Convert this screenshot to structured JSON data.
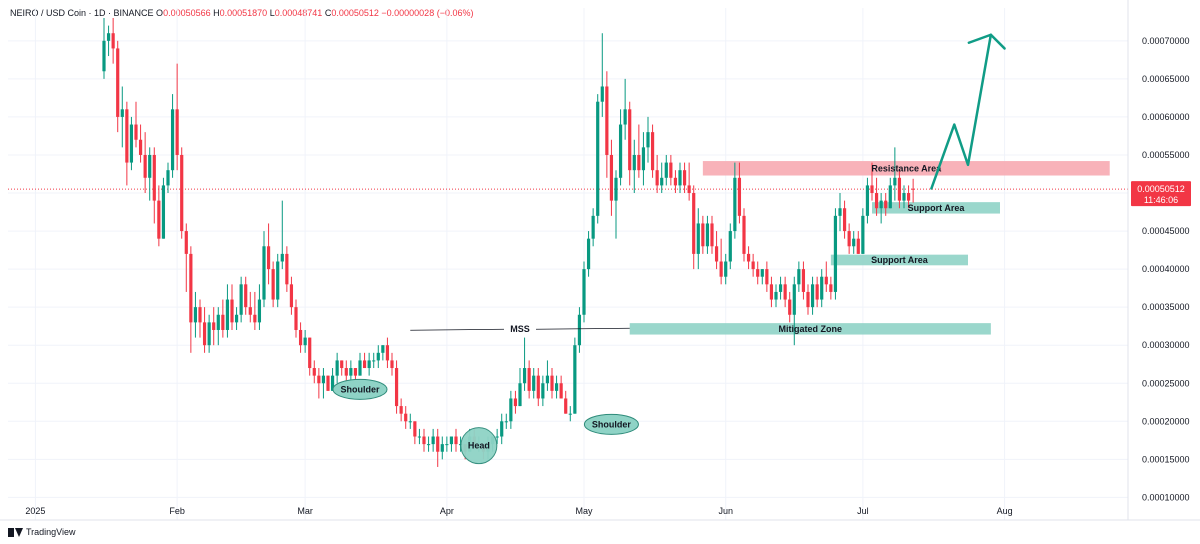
{
  "header": {
    "symbol": "NEIRO / USD Coin · 1D · BINANCE",
    "o_label": "O",
    "o_value": "0.00050566",
    "h_label": "H",
    "h_value": "0.00051870",
    "l_label": "L",
    "l_value": "0.00048741",
    "c_label": "C",
    "c_value": "0.00050512",
    "change": "−0.00000028 (−0.06%)"
  },
  "branding": {
    "name": "TradingView",
    "icon": "tradingview-logo-icon"
  },
  "colors": {
    "up": "#089981",
    "down": "#f23645",
    "zone": "#8fd3c6",
    "resistance": "#f7aab1",
    "arrow": "#109c86",
    "current_price_label": "#f23645"
  },
  "chart_data": {
    "type": "candlestick",
    "y_scale": "linear",
    "ylim": [
      9e-05,
      0.00073
    ],
    "y_ticks": [
      "0.00070000",
      "0.00065000",
      "0.00060000",
      "0.00055000",
      "0.00050000",
      "0.00045000",
      "0.00040000",
      "0.00035000",
      "0.00030000",
      "0.00025000",
      "0.00020000",
      "0.00015000",
      "0.00010000"
    ],
    "x_ticks": [
      "2025",
      "Feb",
      "Mar",
      "Apr",
      "May",
      "Jun",
      "Jul",
      "Aug"
    ],
    "x_tick_dates": [
      "2025-01-01",
      "2025-02-01",
      "2025-03-01",
      "2025-04-01",
      "2025-05-01",
      "2025-06-01",
      "2025-07-01",
      "2025-08-01"
    ],
    "xlim": [
      "2024-12-26",
      "2025-08-28"
    ],
    "current_price": {
      "value": 0.00050512,
      "label": "0.00050512",
      "countdown": "11:46:06"
    },
    "first_date": "2025-01-16",
    "candles": [
      [
        0.00066,
        0.00073,
        0.00065,
        0.0007
      ],
      [
        0.0007,
        0.00072,
        0.00068,
        0.00071
      ],
      [
        0.00071,
        0.00073,
        0.00067,
        0.00069
      ],
      [
        0.00069,
        0.0007,
        0.00058,
        0.0006
      ],
      [
        0.0006,
        0.00064,
        0.00056,
        0.00061
      ],
      [
        0.00061,
        0.00062,
        0.00051,
        0.00054
      ],
      [
        0.00054,
        0.0006,
        0.00053,
        0.00059
      ],
      [
        0.00059,
        0.00062,
        0.00056,
        0.00057
      ],
      [
        0.00057,
        0.00059,
        0.00054,
        0.00055
      ],
      [
        0.00055,
        0.00058,
        0.0005,
        0.00052
      ],
      [
        0.00052,
        0.00056,
        0.00049,
        0.00055
      ],
      [
        0.00055,
        0.00056,
        0.00046,
        0.00049
      ],
      [
        0.00049,
        0.00051,
        0.00043,
        0.00044
      ],
      [
        0.00044,
        0.00052,
        0.00044,
        0.00051
      ],
      [
        0.00051,
        0.00054,
        0.0005,
        0.00053
      ],
      [
        0.00053,
        0.00063,
        0.00052,
        0.00061
      ],
      [
        0.00061,
        0.00067,
        0.00053,
        0.00055
      ],
      [
        0.00055,
        0.00056,
        0.00044,
        0.00045
      ],
      [
        0.00045,
        0.00046,
        0.00037,
        0.00042
      ],
      [
        0.00042,
        0.00043,
        0.00029,
        0.00033
      ],
      [
        0.00033,
        0.00037,
        0.00031,
        0.00035
      ],
      [
        0.00035,
        0.00036,
        0.00031,
        0.00033
      ],
      [
        0.00033,
        0.00035,
        0.00029,
        0.0003
      ],
      [
        0.0003,
        0.00034,
        0.00029,
        0.00033
      ],
      [
        0.00033,
        0.00035,
        0.0003,
        0.00032
      ],
      [
        0.00032,
        0.00035,
        0.0003,
        0.00034
      ],
      [
        0.00034,
        0.00036,
        0.00031,
        0.00032
      ],
      [
        0.00032,
        0.00038,
        0.00031,
        0.00036
      ],
      [
        0.00036,
        0.00038,
        0.00032,
        0.00033
      ],
      [
        0.00033,
        0.00035,
        0.00032,
        0.00034
      ],
      [
        0.00034,
        0.00039,
        0.00033,
        0.00038
      ],
      [
        0.00038,
        0.00039,
        0.00034,
        0.00035
      ],
      [
        0.00035,
        0.00037,
        0.00033,
        0.00034
      ],
      [
        0.00034,
        0.00037,
        0.00032,
        0.00033
      ],
      [
        0.00033,
        0.00038,
        0.00032,
        0.00036
      ],
      [
        0.00036,
        0.00045,
        0.00035,
        0.00043
      ],
      [
        0.00043,
        0.00046,
        0.00038,
        0.0004
      ],
      [
        0.0004,
        0.00041,
        0.00035,
        0.00036
      ],
      [
        0.00036,
        0.00042,
        0.00035,
        0.00041
      ],
      [
        0.00041,
        0.00049,
        0.0004,
        0.00042
      ],
      [
        0.00042,
        0.00043,
        0.00037,
        0.00038
      ],
      [
        0.00038,
        0.00039,
        0.00034,
        0.00035
      ],
      [
        0.00035,
        0.00036,
        0.00031,
        0.00032
      ],
      [
        0.00032,
        0.00033,
        0.00029,
        0.0003
      ],
      [
        0.0003,
        0.00032,
        0.00029,
        0.00031
      ],
      [
        0.00031,
        0.00031,
        0.00026,
        0.00027
      ],
      [
        0.00027,
        0.00028,
        0.00025,
        0.00026
      ],
      [
        0.00026,
        0.00027,
        0.00023,
        0.00025
      ],
      [
        0.00025,
        0.00027,
        0.00023,
        0.00026
      ],
      [
        0.00026,
        0.00026,
        0.00024,
        0.00024
      ],
      [
        0.00024,
        0.00027,
        0.00024,
        0.00026
      ],
      [
        0.00026,
        0.00029,
        0.00025,
        0.00028
      ],
      [
        0.00028,
        0.00028,
        0.00026,
        0.00027
      ],
      [
        0.00027,
        0.00028,
        0.00025,
        0.00026
      ],
      [
        0.00026,
        0.00028,
        0.00025,
        0.00027
      ],
      [
        0.00027,
        0.00027,
        0.00025,
        0.00026
      ],
      [
        0.00026,
        0.00029,
        0.00026,
        0.00028
      ],
      [
        0.00028,
        0.00029,
        0.00027,
        0.00027
      ],
      [
        0.00027,
        0.00029,
        0.00026,
        0.00028
      ],
      [
        0.00028,
        0.00029,
        0.00027,
        0.00028
      ],
      [
        0.00028,
        0.0003,
        0.00027,
        0.00029
      ],
      [
        0.00029,
        0.0003,
        0.00028,
        0.0003
      ],
      [
        0.0003,
        0.00031,
        0.00027,
        0.00028
      ],
      [
        0.00028,
        0.00029,
        0.00026,
        0.00027
      ],
      [
        0.00027,
        0.00028,
        0.00021,
        0.00022
      ],
      [
        0.00022,
        0.00023,
        0.0002,
        0.00021
      ],
      [
        0.00021,
        0.00022,
        0.00019,
        0.0002
      ],
      [
        0.0002,
        0.00021,
        0.00019,
        0.0002
      ],
      [
        0.0002,
        0.0002,
        0.00017,
        0.00018
      ],
      [
        0.00018,
        0.00019,
        0.00017,
        0.00018
      ],
      [
        0.00018,
        0.00019,
        0.00016,
        0.00017
      ],
      [
        0.00017,
        0.00018,
        0.00016,
        0.00017
      ],
      [
        0.00017,
        0.00019,
        0.00016,
        0.00018
      ],
      [
        0.00018,
        0.00019,
        0.00014,
        0.00016
      ],
      [
        0.00016,
        0.00018,
        0.00015,
        0.00017
      ],
      [
        0.00017,
        0.00018,
        0.00016,
        0.00017
      ],
      [
        0.00017,
        0.00018,
        0.00016,
        0.00018
      ],
      [
        0.00018,
        0.00019,
        0.00016,
        0.00017
      ],
      [
        0.00017,
        0.00018,
        0.00016,
        0.00017
      ],
      [
        0.00017,
        0.00017,
        0.00015,
        0.00016
      ],
      [
        0.00016,
        0.00019,
        0.00016,
        0.00018
      ],
      [
        0.00018,
        0.00019,
        0.00017,
        0.00017
      ],
      [
        0.00017,
        0.00018,
        0.00016,
        0.00017
      ],
      [
        0.00017,
        0.00017,
        0.00015,
        0.00016
      ],
      [
        0.00016,
        0.00018,
        0.00015,
        0.00017
      ],
      [
        0.00017,
        0.00018,
        0.00016,
        0.00018
      ],
      [
        0.00018,
        0.00019,
        0.00017,
        0.00018
      ],
      [
        0.00018,
        0.00021,
        0.00017,
        0.0002
      ],
      [
        0.0002,
        0.00021,
        0.00019,
        0.0002
      ],
      [
        0.0002,
        0.00024,
        0.00019,
        0.00023
      ],
      [
        0.00023,
        0.00024,
        0.00021,
        0.00022
      ],
      [
        0.00022,
        0.00027,
        0.00022,
        0.00025
      ],
      [
        0.00025,
        0.00031,
        0.00024,
        0.00027
      ],
      [
        0.00027,
        0.00028,
        0.00023,
        0.00024
      ],
      [
        0.00024,
        0.00027,
        0.00023,
        0.00026
      ],
      [
        0.00026,
        0.00027,
        0.00022,
        0.00023
      ],
      [
        0.00023,
        0.00026,
        0.00022,
        0.00025
      ],
      [
        0.00025,
        0.00028,
        0.00024,
        0.00026
      ],
      [
        0.00026,
        0.00027,
        0.00023,
        0.00024
      ],
      [
        0.00024,
        0.00026,
        0.00023,
        0.00025
      ],
      [
        0.00025,
        0.00026,
        0.00023,
        0.00023
      ],
      [
        0.00023,
        0.00024,
        0.00021,
        0.00021
      ],
      [
        0.00021,
        0.00022,
        0.0002,
        0.00021
      ],
      [
        0.00021,
        0.00031,
        0.00021,
        0.0003
      ],
      [
        0.0003,
        0.00035,
        0.00029,
        0.00034
      ],
      [
        0.00034,
        0.00041,
        0.00033,
        0.0004
      ],
      [
        0.0004,
        0.00045,
        0.00039,
        0.00044
      ],
      [
        0.00044,
        0.00048,
        0.00043,
        0.00047
      ],
      [
        0.00047,
        0.00063,
        0.00046,
        0.00062
      ],
      [
        0.00062,
        0.00071,
        0.0006,
        0.00064
      ],
      [
        0.00064,
        0.00066,
        0.00052,
        0.00055
      ],
      [
        0.00055,
        0.00057,
        0.00047,
        0.00049
      ],
      [
        0.00049,
        0.00053,
        0.00044,
        0.00052
      ],
      [
        0.00052,
        0.00061,
        0.00051,
        0.00059
      ],
      [
        0.00059,
        0.00065,
        0.00057,
        0.00061
      ],
      [
        0.00061,
        0.00062,
        0.00051,
        0.00053
      ],
      [
        0.00053,
        0.00057,
        0.0005,
        0.00055
      ],
      [
        0.00055,
        0.00059,
        0.00052,
        0.00053
      ],
      [
        0.00053,
        0.00058,
        0.00051,
        0.00056
      ],
      [
        0.00056,
        0.0006,
        0.00054,
        0.00058
      ],
      [
        0.00058,
        0.00059,
        0.00052,
        0.00053
      ],
      [
        0.00053,
        0.00055,
        0.0005,
        0.00051
      ],
      [
        0.00051,
        0.00054,
        0.0005,
        0.00052
      ],
      [
        0.00052,
        0.00055,
        0.00051,
        0.00054
      ],
      [
        0.00054,
        0.00055,
        0.00051,
        0.00052
      ],
      [
        0.00052,
        0.00053,
        0.0005,
        0.00051
      ],
      [
        0.00051,
        0.00054,
        0.0005,
        0.00053
      ],
      [
        0.00053,
        0.00054,
        0.0005,
        0.00051
      ],
      [
        0.00051,
        0.00054,
        0.00049,
        0.0005
      ],
      [
        0.0005,
        0.00051,
        0.0004,
        0.00042
      ],
      [
        0.00042,
        0.00048,
        0.0004,
        0.00046
      ],
      [
        0.00046,
        0.00047,
        0.00042,
        0.00043
      ],
      [
        0.00043,
        0.00047,
        0.00042,
        0.00046
      ],
      [
        0.00046,
        0.00047,
        0.00042,
        0.00043
      ],
      [
        0.00043,
        0.00045,
        0.0004,
        0.00041
      ],
      [
        0.00041,
        0.00044,
        0.00038,
        0.00039
      ],
      [
        0.00039,
        0.00042,
        0.00038,
        0.00041
      ],
      [
        0.00041,
        0.00046,
        0.0004,
        0.00045
      ],
      [
        0.00045,
        0.00054,
        0.00044,
        0.00052
      ],
      [
        0.00052,
        0.00054,
        0.00046,
        0.00047
      ],
      [
        0.00047,
        0.00048,
        0.00041,
        0.00042
      ],
      [
        0.00042,
        0.00043,
        0.0004,
        0.00041
      ],
      [
        0.00041,
        0.00042,
        0.00039,
        0.0004
      ],
      [
        0.0004,
        0.00041,
        0.00038,
        0.00039
      ],
      [
        0.00039,
        0.0004,
        0.00038,
        0.0004
      ],
      [
        0.0004,
        0.00041,
        0.00037,
        0.00038
      ],
      [
        0.00038,
        0.00039,
        0.00035,
        0.00036
      ],
      [
        0.00036,
        0.00038,
        0.00035,
        0.00037
      ],
      [
        0.00037,
        0.00039,
        0.00036,
        0.00038
      ],
      [
        0.00038,
        0.00039,
        0.00035,
        0.00036
      ],
      [
        0.00036,
        0.00037,
        0.00033,
        0.00034
      ],
      [
        0.00034,
        0.00039,
        0.0003,
        0.00038
      ],
      [
        0.00038,
        0.00041,
        0.00037,
        0.0004
      ],
      [
        0.0004,
        0.00041,
        0.00036,
        0.00037
      ],
      [
        0.00037,
        0.00038,
        0.00034,
        0.00035
      ],
      [
        0.00035,
        0.00039,
        0.00034,
        0.00038
      ],
      [
        0.00038,
        0.00039,
        0.00035,
        0.00036
      ],
      [
        0.00036,
        0.0004,
        0.00035,
        0.00039
      ],
      [
        0.00039,
        0.00041,
        0.00037,
        0.00038
      ],
      [
        0.00038,
        0.00039,
        0.00036,
        0.00037
      ],
      [
        0.00037,
        0.00048,
        0.00036,
        0.00047
      ],
      [
        0.00047,
        0.0005,
        0.00045,
        0.00048
      ],
      [
        0.00048,
        0.00049,
        0.00044,
        0.00045
      ],
      [
        0.00045,
        0.00046,
        0.00042,
        0.00043
      ],
      [
        0.00043,
        0.00045,
        0.00042,
        0.00044
      ],
      [
        0.00044,
        0.00045,
        0.00042,
        0.00042
      ],
      [
        0.00042,
        0.00048,
        0.00042,
        0.00047
      ],
      [
        0.00047,
        0.00052,
        0.00046,
        0.00051
      ],
      [
        0.00051,
        0.00054,
        0.00049,
        0.0005
      ],
      [
        0.0005,
        0.00052,
        0.00047,
        0.00048
      ],
      [
        0.00048,
        0.0005,
        0.00046,
        0.00049
      ],
      [
        0.00049,
        0.0005,
        0.00047,
        0.00048
      ],
      [
        0.00048,
        0.00052,
        0.00048,
        0.00051
      ],
      [
        0.00051,
        0.00056,
        0.00049,
        0.00052
      ],
      [
        0.00052,
        0.00053,
        0.00048,
        0.00049
      ],
      [
        0.00049,
        0.00051,
        0.00048,
        0.0005
      ],
      [
        0.0005,
        0.00051,
        0.00048,
        0.00049
      ],
      [
        0.00050566,
        0.0005187,
        0.00048741,
        0.00050512
      ]
    ],
    "zones": [
      {
        "label": "Resistance Area",
        "kind": "resistance",
        "from": "2025-05-27",
        "to": "2025-08-24",
        "low": 0.000523,
        "high": 0.000542
      },
      {
        "label": "Support Area",
        "kind": "support",
        "from": "2025-07-03",
        "to": "2025-07-31",
        "low": 0.000473,
        "high": 0.000488
      },
      {
        "label": "Support Area",
        "kind": "support",
        "from": "2025-06-24",
        "to": "2025-07-24",
        "low": 0.000405,
        "high": 0.000419
      },
      {
        "label": "Mitigated Zone",
        "kind": "support",
        "from": "2025-05-11",
        "to": "2025-07-29",
        "low": 0.000314,
        "high": 0.000329
      }
    ],
    "mss_line": {
      "label": "MSS",
      "from": "2025-03-24",
      "to": "2025-05-11",
      "value": 0.000321
    },
    "pattern_labels": [
      {
        "label": "Shoulder",
        "date": "2025-03-13",
        "value": 0.000242
      },
      {
        "label": "Head",
        "date": "2025-04-08",
        "value": 0.000168
      },
      {
        "label": "Shoulder",
        "date": "2025-05-07",
        "value": 0.000196
      }
    ],
    "projection": [
      [
        "2025-07-16",
        0.000506
      ],
      [
        "2025-07-21",
        0.00059
      ],
      [
        "2025-07-24",
        0.000537
      ],
      [
        "2025-07-29",
        0.000708
      ],
      [
        "2025-08-01",
        0.00069
      ]
    ]
  }
}
